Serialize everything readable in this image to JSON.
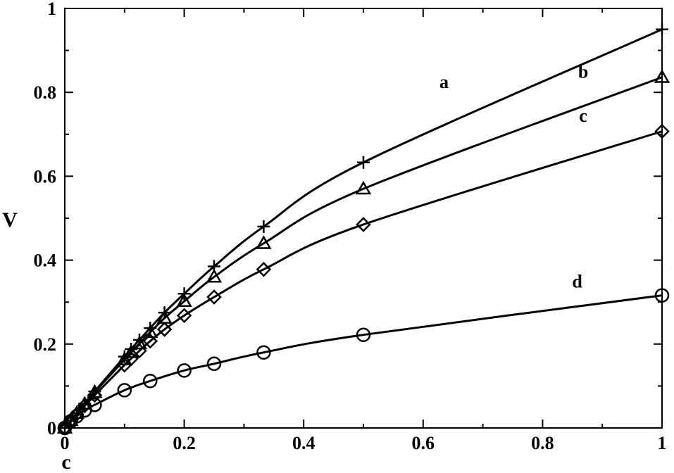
{
  "chart_data": {
    "type": "line",
    "title": "",
    "xlabel": "c",
    "ylabel": "V",
    "xlim": [
      0,
      1
    ],
    "ylim": [
      0,
      1
    ],
    "x_ticks": [
      0,
      0.2,
      0.4,
      0.6,
      0.8,
      1
    ],
    "x_tick_labels": [
      "0",
      "0.2",
      "0.4",
      "0.6",
      "0.8",
      "1"
    ],
    "y_ticks": [
      0,
      0.2,
      0.4,
      0.6,
      0.8,
      1
    ],
    "y_tick_labels": [
      "0",
      "0.2",
      "0.4",
      "0.6",
      "0.8",
      "1"
    ],
    "grid": false,
    "legend": "none",
    "line_color": "#000000",
    "series": [
      {
        "name": "a",
        "marker": "plus",
        "x": [
          0,
          0.01,
          0.02,
          0.0333,
          0.05,
          0.1,
          0.111,
          0.125,
          0.143,
          0.167,
          0.2,
          0.25,
          0.333,
          0.5,
          1
        ],
        "y": [
          0,
          0.018,
          0.035,
          0.058,
          0.087,
          0.17,
          0.188,
          0.21,
          0.238,
          0.275,
          0.32,
          0.385,
          0.48,
          0.633,
          0.95
        ]
      },
      {
        "name": "b",
        "marker": "triangle",
        "x": [
          0,
          0.01,
          0.02,
          0.0333,
          0.05,
          0.1,
          0.111,
          0.125,
          0.143,
          0.167,
          0.2,
          0.25,
          0.333,
          0.5,
          1
        ],
        "y": [
          0,
          0.018,
          0.035,
          0.057,
          0.085,
          0.163,
          0.18,
          0.201,
          0.228,
          0.262,
          0.302,
          0.36,
          0.44,
          0.57,
          0.836
        ]
      },
      {
        "name": "c",
        "marker": "diamond",
        "x": [
          0,
          0.01,
          0.02,
          0.0333,
          0.05,
          0.1,
          0.111,
          0.125,
          0.143,
          0.167,
          0.2,
          0.25,
          0.333,
          0.5,
          1
        ],
        "y": [
          0,
          0.017,
          0.033,
          0.053,
          0.078,
          0.15,
          0.165,
          0.184,
          0.207,
          0.235,
          0.268,
          0.312,
          0.378,
          0.485,
          0.707
        ]
      },
      {
        "name": "d",
        "marker": "circle",
        "x": [
          0,
          0.01,
          0.02,
          0.0333,
          0.05,
          0.1,
          0.143,
          0.2,
          0.25,
          0.333,
          0.5,
          1
        ],
        "y": [
          0,
          0.016,
          0.028,
          0.042,
          0.055,
          0.09,
          0.112,
          0.137,
          0.153,
          0.18,
          0.222,
          0.316
        ]
      }
    ],
    "annotations": [
      {
        "text": "a",
        "series": "a",
        "x": 0.635,
        "y": 0.81
      },
      {
        "text": "b",
        "series": "b",
        "x": 0.868,
        "y": 0.835
      },
      {
        "text": "c",
        "series": "c",
        "x": 0.868,
        "y": 0.73
      },
      {
        "text": "d",
        "series": "d",
        "x": 0.858,
        "y": 0.335
      }
    ]
  }
}
